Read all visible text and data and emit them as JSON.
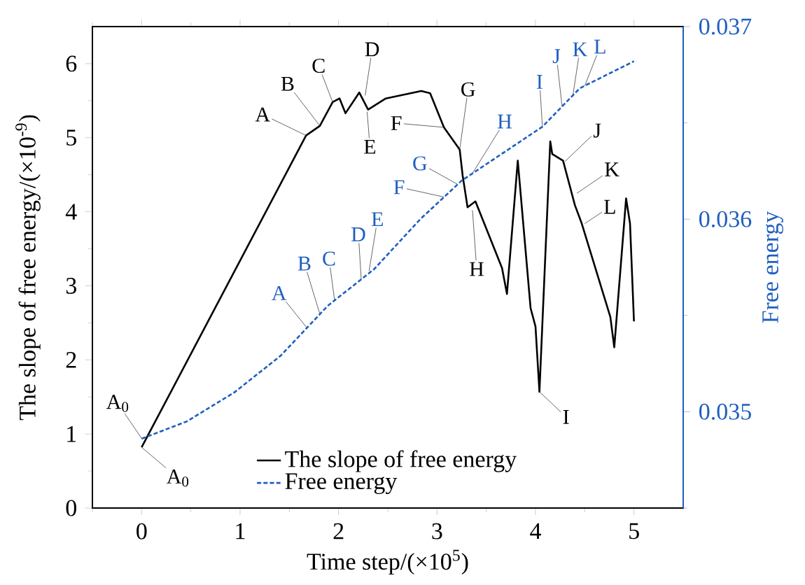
{
  "chart_data": {
    "type": "line",
    "xlabel": "Time step/(×10$^{5}$)",
    "ylabel": "The slope of free energy/(×10$^{-9}$)",
    "y2label": "Free energy",
    "xlim": [
      -0.5,
      5.5
    ],
    "xticks": [
      {
        "value": -0.5,
        "label": null
      },
      0,
      {
        "value": 0.5,
        "label": null
      },
      1,
      {
        "value": 1.5,
        "label": null
      },
      2,
      {
        "value": 2.5,
        "label": null
      },
      3,
      {
        "value": 3.5,
        "label": null
      },
      4,
      {
        "value": 4.5,
        "label": null
      },
      5
    ],
    "ylim": [
      0,
      6.5
    ],
    "yticks": [
      0,
      {
        "value": 0.5,
        "label": null
      },
      1,
      {
        "value": 1.5,
        "label": null
      },
      2,
      {
        "value": 2.5,
        "label": null
      },
      3,
      {
        "value": 3.5,
        "label": null
      },
      4,
      {
        "value": 4.5,
        "label": null
      },
      5,
      {
        "value": 5.5,
        "label": null
      },
      6
    ],
    "y2lim": [
      0.0345,
      0.037
    ],
    "y2ticks": [
      {
        "value": 0.0345,
        "label": null
      },
      0.035,
      {
        "value": 0.0355,
        "label": null
      },
      0.036,
      {
        "value": 0.0365,
        "label": null
      },
      0.037
    ],
    "legend": "bottom",
    "marker": "none",
    "series": [
      {
        "name": "The slope of free energy",
        "color": "#000000",
        "line_style": "solid",
        "x": [
          0,
          1.67,
          1.81,
          1.94,
          2.01,
          2.07,
          2.21,
          2.3,
          2.48,
          2.84,
          2.93,
          3.07,
          3.23,
          3.26,
          3.31,
          3.39,
          3.66,
          3.71,
          3.82,
          3.95,
          4.0,
          4.04,
          4.15,
          4.17,
          4.28,
          4.4,
          4.47,
          4.76,
          4.8,
          4.92,
          4.96,
          5.0
        ],
        "values": [
          0.82,
          5.03,
          5.16,
          5.48,
          5.53,
          5.33,
          5.61,
          5.38,
          5.53,
          5.63,
          5.6,
          5.14,
          4.84,
          4.49,
          4.06,
          4.14,
          3.24,
          2.89,
          4.69,
          2.7,
          2.45,
          1.57,
          4.95,
          4.78,
          4.69,
          4.09,
          3.84,
          2.58,
          2.17,
          4.18,
          3.84,
          2.52
        ]
      },
      {
        "name": "Free energy",
        "color": "#1f5fbf",
        "line_style": "dashed",
        "axis": "y2",
        "x": [
          0,
          0.46,
          0.94,
          1.41,
          1.89,
          2.36,
          2.83,
          3.25,
          4.07,
          4.45,
          5.0
        ],
        "values": [
          0.03486,
          0.03495,
          0.0351,
          0.03529,
          0.03555,
          0.03574,
          0.036,
          0.0362,
          0.03648,
          0.03668,
          0.03682
        ]
      }
    ],
    "annotations": [
      {
        "text": "A$_{0}$",
        "x": 0,
        "y": 0.82
      },
      {
        "text": "A$_{0}$",
        "x": 0,
        "y": 0.94
      },
      {
        "text": "A",
        "x": 1.67,
        "y": 5.03
      },
      {
        "text": "B",
        "x": 1.81,
        "y": 5.16
      },
      {
        "text": "C",
        "x": 1.94,
        "y": 5.48
      },
      {
        "text": "D",
        "x": 2.27,
        "y": 5.57
      },
      {
        "text": "E",
        "x": 2.29,
        "y": 5.35
      },
      {
        "text": "F",
        "x": 3.07,
        "y": 5.14
      },
      {
        "text": "G",
        "x": 3.23,
        "y": 4.84
      },
      {
        "text": "H",
        "x": 3.36,
        "y": 4.02
      },
      {
        "text": "I",
        "x": 4.04,
        "y": 1.57
      },
      {
        "text": "J",
        "x": 4.3,
        "y": 4.68
      },
      {
        "text": "K",
        "x": 4.42,
        "y": 4.25
      },
      {
        "text": "L",
        "x": 4.5,
        "y": 3.84
      },
      {
        "text": "A",
        "x": 1.68,
        "y": 2.43
      },
      {
        "text": "B",
        "x": 1.81,
        "y": 2.62
      },
      {
        "text": "C",
        "x": 1.96,
        "y": 2.8
      },
      {
        "text": "D",
        "x": 2.23,
        "y": 3.09
      },
      {
        "text": "E",
        "x": 2.31,
        "y": 3.2
      },
      {
        "text": "F",
        "x": 3.07,
        "y": 4.2
      },
      {
        "text": "G",
        "x": 3.21,
        "y": 4.37
      },
      {
        "text": "H",
        "x": 3.36,
        "y": 4.52
      },
      {
        "text": "I",
        "x": 4.07,
        "y": 5.15
      },
      {
        "text": "J",
        "x": 4.27,
        "y": 5.42
      },
      {
        "text": "K",
        "x": 4.38,
        "y": 5.57
      },
      {
        "text": "L",
        "x": 4.5,
        "y": 5.7
      }
    ]
  }
}
